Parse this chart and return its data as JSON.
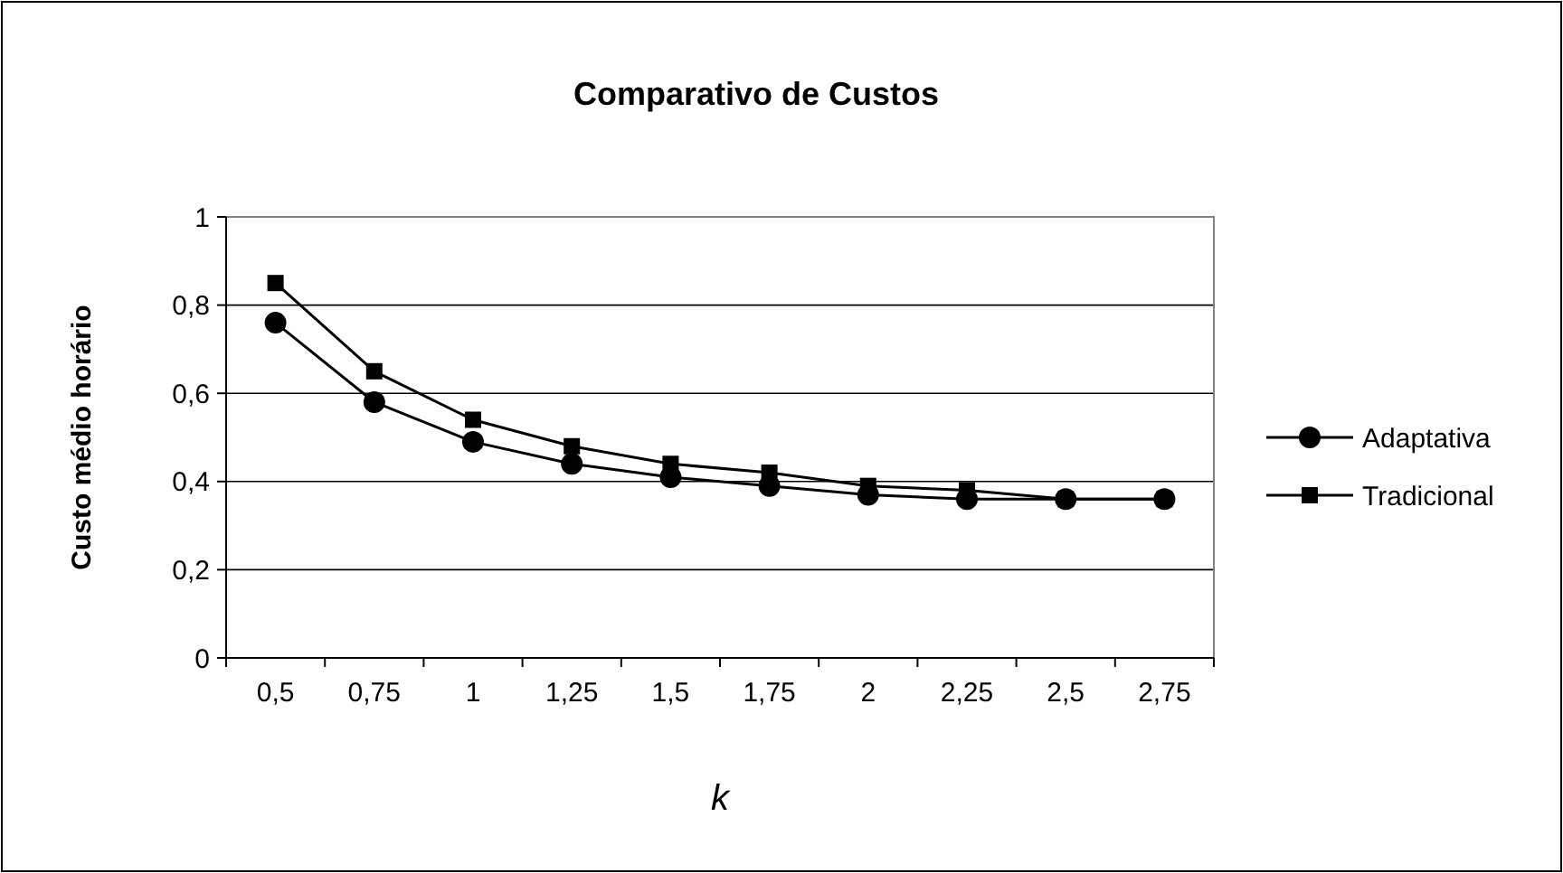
{
  "chart_data": {
    "type": "line",
    "title": "Comparativo de Custos",
    "xlabel": "k",
    "ylabel": "Custo médio horário",
    "categories": [
      "0,5",
      "0,75",
      "1",
      "1,25",
      "1,5",
      "1,75",
      "2",
      "2,25",
      "2,5",
      "2,75"
    ],
    "series": [
      {
        "name": "Adaptativa",
        "color": "#000000",
        "marker": "circle",
        "values": [
          0.76,
          0.58,
          0.49,
          0.44,
          0.41,
          0.39,
          0.37,
          0.36,
          0.36,
          0.36
        ]
      },
      {
        "name": "Tradicional",
        "color": "#000000",
        "marker": "square",
        "values": [
          0.85,
          0.65,
          0.54,
          0.48,
          0.44,
          0.42,
          0.39,
          0.38,
          0.36,
          0.36
        ]
      }
    ],
    "ylim": [
      0,
      1
    ],
    "yticks": [
      0,
      {
        "value": 0.2,
        "label": "0,2"
      },
      {
        "value": 0.4,
        "label": "0,4"
      },
      {
        "value": 0.6,
        "label": "0,6"
      },
      {
        "value": 0.8,
        "label": "0,8"
      },
      1
    ],
    "grid": "y",
    "legend": "right",
    "line_style": "solid"
  }
}
